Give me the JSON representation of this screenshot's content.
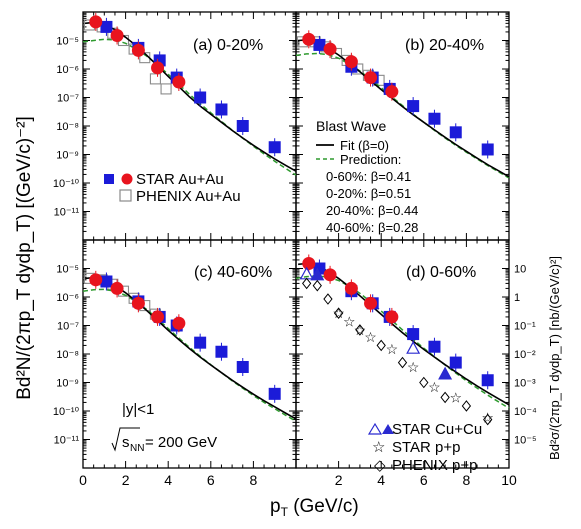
{
  "chart_data": {
    "type": "scatter",
    "y_axis_label": "Bd²N/(2πp_T dydp_T) [(GeV/c)⁻²]",
    "y_axis_label_right": "Bd²σ/(2πp_T dydp_T) [nb/(GeV/c)²]",
    "x_axis_label": "p_T (GeV/c)",
    "x_ticks": [
      "0",
      "2",
      "4",
      "6",
      "8",
      "10"
    ],
    "xlim": [
      0,
      10
    ],
    "ylim": [
      1e-12,
      0.0001
    ],
    "y_scale": "log",
    "y_ticks_left": [
      "10⁻⁵",
      "10⁻⁶",
      "10⁻⁷",
      "10⁻⁸",
      "10⁻⁹",
      "10⁻¹⁰",
      "10⁻¹¹"
    ],
    "y_ticks_right": [
      "10",
      "1",
      "10⁻¹",
      "10⁻²",
      "10⁻³",
      "10⁻⁴",
      "10⁻⁵"
    ],
    "legend_left": {
      "star_auau": "STAR Au+Au",
      "phenix_auau": "PHENIX Au+Au"
    },
    "legend_blast": {
      "title": "Blast Wave",
      "fit": "Fit (β=0)",
      "prediction": "Prediction:",
      "lines": [
        "0-60%: β=0.41",
        "0-20%: β=0.51",
        "20-40%: β=0.44",
        "40-60%: β=0.28"
      ]
    },
    "legend_pp": {
      "star_cucu": "STAR Cu+Cu",
      "star_pp": "STAR p+p",
      "phenix_pp": "PHENIX p+p"
    },
    "annotations": {
      "rapidity": "|y|<1",
      "energy": "= 200 GeV",
      "energy_sym": "s",
      "energy_sub": "NN"
    },
    "colors": {
      "star_auau_red": "#e8141e",
      "star_auau_blue": "#1b1bd8",
      "phenix": "#8a8a8a",
      "fit": "#000000",
      "prediction": "#2e9a2e",
      "cucu": "#2a2ad0"
    },
    "panels": [
      {
        "label": "(a) 0-20%",
        "star_red": [
          [
            0.6,
            4.5e-05
          ],
          [
            1.6,
            1.5e-05
          ],
          [
            2.6,
            4.5e-06
          ],
          [
            3.5,
            1.1e-06
          ],
          [
            4.5,
            3.5e-07
          ]
        ],
        "star_blue": [
          [
            1.1,
            3e-05
          ],
          [
            2.6,
            5.5e-06
          ],
          [
            3.6,
            2e-06
          ],
          [
            4.4,
            5e-07
          ],
          [
            5.5,
            1e-07
          ],
          [
            6.5,
            3.8e-08
          ],
          [
            7.5,
            1e-08
          ],
          [
            9.0,
            1.8e-09
          ]
        ],
        "phenix": [
          [
            0.3,
            3.5e-05
          ],
          [
            0.9,
            3e-05
          ],
          [
            1.4,
            1.8e-05
          ],
          [
            1.9,
            1e-05
          ],
          [
            2.4,
            5e-06
          ],
          [
            2.9,
            2.5e-06
          ],
          [
            3.4,
            4.5e-07
          ],
          [
            3.9,
            2e-07
          ]
        ],
        "fit": [
          [
            0.1,
            4e-05
          ],
          [
            0.5,
            4.3e-05
          ],
          [
            1,
            3.6e-05
          ],
          [
            1.5,
            2.4e-05
          ],
          [
            2,
            1.3e-05
          ],
          [
            2.5,
            6.5e-06
          ],
          [
            3,
            3e-06
          ],
          [
            3.5,
            1.3e-06
          ],
          [
            4,
            5.5e-07
          ],
          [
            4.5,
            2.4e-07
          ],
          [
            5,
            1.05e-07
          ],
          [
            5.5,
            5e-08
          ],
          [
            6,
            2.6e-08
          ],
          [
            6.5,
            1.35e-08
          ],
          [
            7,
            7e-09
          ],
          [
            7.5,
            3.8e-09
          ],
          [
            8,
            2.1e-09
          ],
          [
            8.5,
            1.2e-09
          ],
          [
            9,
            7e-10
          ],
          [
            9.5,
            4.2e-10
          ],
          [
            10,
            2.6e-10
          ]
        ],
        "prediction": [
          [
            0,
            9e-06
          ],
          [
            0.5,
            1e-05
          ],
          [
            1,
            1.1e-05
          ],
          [
            1.5,
            1.05e-05
          ],
          [
            2,
            8e-06
          ],
          [
            2.5,
            5e-06
          ],
          [
            3,
            2.8e-06
          ],
          [
            3.5,
            1.4e-06
          ],
          [
            4,
            6.5e-07
          ],
          [
            4.5,
            2.9e-07
          ],
          [
            5,
            1.3e-07
          ],
          [
            5.5,
            6e-08
          ],
          [
            6,
            2.9e-08
          ],
          [
            6.5,
            1.45e-08
          ],
          [
            7,
            7.2e-09
          ],
          [
            7.5,
            3.7e-09
          ],
          [
            8,
            1.95e-09
          ],
          [
            8.5,
            1.05e-09
          ],
          [
            9,
            5.8e-10
          ],
          [
            9.5,
            3.3e-10
          ],
          [
            10,
            1.9e-10
          ]
        ]
      },
      {
        "label": "(b) 20-40%",
        "star_red": [
          [
            0.6,
            1.1e-05
          ],
          [
            1.6,
            5e-06
          ],
          [
            2.6,
            1.8e-06
          ],
          [
            3.5,
            5e-07
          ],
          [
            4.5,
            1.6e-07
          ]
        ],
        "star_blue": [
          [
            1.1,
            7e-06
          ],
          [
            2.6,
            1.2e-06
          ],
          [
            3.6,
            5e-07
          ],
          [
            4.4,
            2e-07
          ],
          [
            5.5,
            5e-08
          ],
          [
            6.5,
            1.8e-08
          ],
          [
            7.5,
            6e-09
          ],
          [
            9.0,
            1.5e-09
          ]
        ],
        "phenix": [
          [
            0.3,
            9e-06
          ],
          [
            0.9,
            9e-06
          ],
          [
            1.4,
            6e-06
          ],
          [
            1.9,
            3.5e-06
          ],
          [
            2.4,
            2e-06
          ],
          [
            2.9,
            1e-06
          ],
          [
            3.4,
            6e-07
          ],
          [
            3.9,
            4e-07
          ]
        ],
        "fit": [
          [
            0.1,
            1e-05
          ],
          [
            0.5,
            1.05e-05
          ],
          [
            1,
            8.5e-06
          ],
          [
            1.5,
            5.5e-06
          ],
          [
            2,
            3.1e-06
          ],
          [
            2.5,
            1.6e-06
          ],
          [
            3,
            8e-07
          ],
          [
            3.5,
            3.9e-07
          ],
          [
            4,
            1.9e-07
          ],
          [
            4.5,
            9.5e-08
          ],
          [
            5,
            4.8e-08
          ],
          [
            5.5,
            2.5e-08
          ],
          [
            6,
            1.35e-08
          ],
          [
            6.5,
            7.3e-09
          ],
          [
            7,
            4e-09
          ],
          [
            7.5,
            2.25e-09
          ],
          [
            8,
            1.3e-09
          ],
          [
            8.5,
            7.5e-10
          ],
          [
            9,
            4.4e-10
          ],
          [
            9.5,
            2.7e-10
          ],
          [
            10,
            1.65e-10
          ]
        ],
        "prediction": [
          [
            0,
            3e-06
          ],
          [
            0.5,
            3.4e-06
          ],
          [
            1,
            3.5e-06
          ],
          [
            1.5,
            3.2e-06
          ],
          [
            2,
            2.4e-06
          ],
          [
            2.5,
            1.5e-06
          ],
          [
            3,
            8.5e-07
          ],
          [
            3.5,
            4.4e-07
          ],
          [
            4,
            2.2e-07
          ],
          [
            4.5,
            1.05e-07
          ],
          [
            5,
            5.2e-08
          ],
          [
            5.5,
            2.6e-08
          ],
          [
            6,
            1.35e-08
          ],
          [
            6.5,
            7e-09
          ],
          [
            7,
            3.8e-09
          ],
          [
            7.5,
            2.1e-09
          ],
          [
            8,
            1.2e-09
          ],
          [
            8.5,
            7e-10
          ],
          [
            9,
            4.1e-10
          ],
          [
            9.5,
            2.5e-10
          ],
          [
            10,
            1.5e-10
          ]
        ]
      },
      {
        "label": "(c) 40-60%",
        "star_red": [
          [
            0.6,
            4e-06
          ],
          [
            1.6,
            2e-06
          ],
          [
            2.6,
            6e-07
          ],
          [
            3.5,
            2e-07
          ],
          [
            4.5,
            1.2e-07
          ]
        ],
        "star_blue": [
          [
            1.1,
            3.5e-06
          ],
          [
            2.6,
            7e-07
          ],
          [
            3.6,
            2e-07
          ],
          [
            4.4,
            1e-07
          ],
          [
            5.5,
            2.5e-08
          ],
          [
            6.5,
            1.2e-08
          ],
          [
            7.5,
            3.5e-09
          ],
          [
            9.0,
            4e-10
          ]
        ],
        "phenix": [
          [
            0.3,
            4.5e-06
          ],
          [
            0.9,
            4e-06
          ],
          [
            1.4,
            2.8e-06
          ],
          [
            1.9,
            1.6e-06
          ],
          [
            2.4,
            9e-07
          ],
          [
            2.9,
            5e-07
          ],
          [
            3.4,
            2.5e-07
          ]
        ],
        "fit": [
          [
            0.1,
            4.5e-06
          ],
          [
            0.5,
            4.8e-06
          ],
          [
            1,
            3.8e-06
          ],
          [
            1.5,
            2.5e-06
          ],
          [
            2,
            1.4e-06
          ],
          [
            2.5,
            7e-07
          ],
          [
            3,
            3.3e-07
          ],
          [
            3.5,
            1.5e-07
          ],
          [
            4,
            6.8e-08
          ],
          [
            4.5,
            3.2e-08
          ],
          [
            5,
            1.55e-08
          ],
          [
            5.5,
            7.8e-09
          ],
          [
            6,
            4.1e-09
          ],
          [
            6.5,
            2.2e-09
          ],
          [
            7,
            1.2e-09
          ],
          [
            7.5,
            6.8e-10
          ],
          [
            8,
            3.9e-10
          ],
          [
            8.5,
            2.3e-10
          ],
          [
            9,
            1.4e-10
          ],
          [
            9.5,
            8.5e-11
          ],
          [
            10,
            5.3e-11
          ]
        ],
        "prediction": [
          [
            0,
            1.6e-06
          ],
          [
            0.5,
            1.8e-06
          ],
          [
            1,
            1.85e-06
          ],
          [
            1.5,
            1.6e-06
          ],
          [
            2,
            1.15e-06
          ],
          [
            2.5,
            6.8e-07
          ],
          [
            3,
            3.6e-07
          ],
          [
            3.5,
            1.7e-07
          ],
          [
            4,
            7.8e-08
          ],
          [
            4.5,
            3.6e-08
          ],
          [
            5,
            1.7e-08
          ],
          [
            5.5,
            8.3e-09
          ],
          [
            6,
            4.2e-09
          ],
          [
            6.5,
            2.2e-09
          ],
          [
            7,
            1.15e-09
          ],
          [
            7.5,
            6.3e-10
          ],
          [
            8,
            3.5e-10
          ],
          [
            8.5,
            2e-10
          ],
          [
            9,
            1.2e-10
          ],
          [
            9.5,
            7.2e-11
          ],
          [
            10,
            4.4e-11
          ]
        ]
      },
      {
        "label": "(d) 0-60%",
        "star_red": [
          [
            0.6,
            1.5e-05
          ],
          [
            1.6,
            6e-06
          ],
          [
            2.6,
            2e-06
          ],
          [
            3.5,
            6e-07
          ],
          [
            4.5,
            2e-07
          ]
        ],
        "star_blue": [
          [
            1.1,
            1e-05
          ],
          [
            2.6,
            1.6e-06
          ],
          [
            3.6,
            6e-07
          ],
          [
            4.4,
            2e-07
          ],
          [
            5.5,
            5e-08
          ],
          [
            6.5,
            1.8e-08
          ],
          [
            7.5,
            5e-09
          ],
          [
            9.0,
            1.2e-09
          ]
        ],
        "cucu": [
          [
            0.5,
            6.5e-06
          ],
          [
            1.0,
            6e-06
          ],
          [
            5.5,
            1.6e-08
          ],
          [
            7.0,
            2e-09
          ]
        ],
        "star_pp": [
          [
            2.0,
            2.8e-07
          ],
          [
            2.5,
            1.4e-07
          ],
          [
            3.0,
            7e-08
          ],
          [
            3.5,
            4e-08
          ],
          [
            4.5,
            1.5e-08
          ],
          [
            5.5,
            3.5e-09
          ],
          [
            6.5,
            7e-10
          ],
          [
            7.5,
            3e-10
          ],
          [
            9.0,
            6e-11
          ]
        ],
        "phenix_pp": [
          [
            0.5,
            3e-06
          ],
          [
            1.0,
            2.5e-06
          ],
          [
            1.5,
            8.5e-07
          ],
          [
            2.0,
            2.7e-07
          ],
          [
            3.0,
            7e-08
          ],
          [
            4.0,
            2e-08
          ],
          [
            5.0,
            5e-09
          ],
          [
            6.0,
            1e-09
          ],
          [
            7.0,
            3e-10
          ],
          [
            8.0,
            1.5e-10
          ],
          [
            9.0,
            5e-11
          ]
        ],
        "fit": [
          [
            0.1,
            1.4e-05
          ],
          [
            0.5,
            1.5e-05
          ],
          [
            1,
            1.25e-05
          ],
          [
            1.5,
            8e-06
          ],
          [
            2,
            4.5e-06
          ],
          [
            2.5,
            2.3e-06
          ],
          [
            3,
            1.1e-06
          ],
          [
            3.5,
            5.2e-07
          ],
          [
            4,
            2.45e-07
          ],
          [
            4.5,
            1.15e-07
          ],
          [
            5,
            5.6e-08
          ],
          [
            5.5,
            2.8e-08
          ],
          [
            6,
            1.45e-08
          ],
          [
            6.5,
            7.8e-09
          ],
          [
            7,
            4.2e-09
          ],
          [
            7.5,
            2.35e-09
          ],
          [
            8,
            1.32e-09
          ],
          [
            8.5,
            7.6e-10
          ],
          [
            9,
            4.5e-10
          ],
          [
            9.5,
            2.7e-10
          ],
          [
            10,
            1.65e-10
          ]
        ],
        "prediction": [
          [
            0,
            4.5e-06
          ],
          [
            0.5,
            5.2e-06
          ],
          [
            1,
            5.5e-06
          ],
          [
            1.5,
            5e-06
          ],
          [
            2,
            3.8e-06
          ],
          [
            2.5,
            2.4e-06
          ],
          [
            3,
            1.35e-06
          ],
          [
            3.5,
            6.8e-07
          ],
          [
            4,
            3.2e-07
          ],
          [
            4.5,
            1.5e-07
          ],
          [
            5,
            7e-08
          ],
          [
            5.5,
            3.3e-08
          ],
          [
            6,
            1.6e-08
          ],
          [
            6.5,
            8e-09
          ],
          [
            7,
            4.1e-09
          ],
          [
            7.5,
            2.15e-09
          ],
          [
            8,
            1.15e-09
          ],
          [
            8.5,
            6.4e-10
          ],
          [
            9,
            3.6e-10
          ],
          [
            9.5,
            2.1e-10
          ],
          [
            10,
            1.25e-10
          ]
        ]
      }
    ]
  }
}
